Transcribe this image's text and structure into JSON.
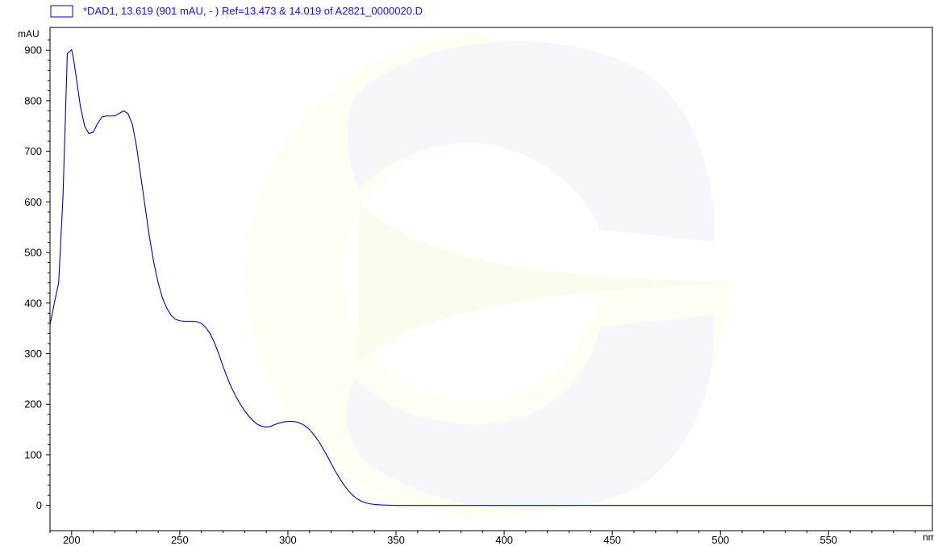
{
  "chart_data": {
    "type": "line",
    "legend": "*DAD1, 13.619 (901 mAU, - ) Ref=13.473 & 14.019 of A2821_0000020.D",
    "ylabel": "mAU",
    "xlabel": "nm",
    "xlim": [
      190,
      598
    ],
    "ylim": [
      -50,
      945
    ],
    "x_ticks": [
      "200",
      "250",
      "300",
      "350",
      "400",
      "450",
      "500",
      "550"
    ],
    "y_ticks": [
      "0",
      "100",
      "200",
      "300",
      "400",
      "500",
      "600",
      "700",
      "800",
      "900"
    ],
    "series": [
      {
        "color": "#0000cc",
        "x": [
          190,
          192,
          194,
          196,
          198,
          200,
          201,
          202,
          204,
          206,
          208,
          210,
          212,
          214,
          216,
          218,
          220,
          222,
          224,
          226,
          228,
          230,
          232,
          234,
          236,
          238,
          240,
          242,
          244,
          246,
          248,
          250,
          252,
          254,
          256,
          258,
          260,
          262,
          264,
          266,
          268,
          270,
          272,
          274,
          276,
          278,
          280,
          282,
          284,
          286,
          288,
          290,
          292,
          294,
          296,
          298,
          300,
          302,
          304,
          306,
          308,
          310,
          312,
          314,
          316,
          318,
          320,
          322,
          324,
          326,
          328,
          330,
          332,
          334,
          336,
          338,
          340,
          343,
          346,
          350,
          355,
          360,
          370,
          400,
          450,
          500,
          550,
          598
        ],
        "y": [
          357,
          400,
          440,
          610,
          893,
          901,
          880,
          850,
          790,
          750,
          735,
          738,
          755,
          768,
          770,
          770,
          770,
          775,
          780,
          775,
          755,
          710,
          650,
          590,
          530,
          480,
          440,
          410,
          390,
          376,
          368,
          365,
          364,
          364,
          364,
          363,
          360,
          352,
          340,
          322,
          300,
          275,
          252,
          232,
          215,
          200,
          187,
          176,
          167,
          160,
          156,
          155,
          156,
          160,
          163,
          165,
          166,
          166,
          165,
          162,
          157,
          150,
          140,
          128,
          114,
          99,
          83,
          67,
          53,
          40,
          29,
          20,
          13,
          8,
          5,
          3,
          2,
          1,
          0.5,
          0,
          0,
          0,
          0,
          0,
          0,
          0,
          0,
          0
        ]
      }
    ]
  }
}
